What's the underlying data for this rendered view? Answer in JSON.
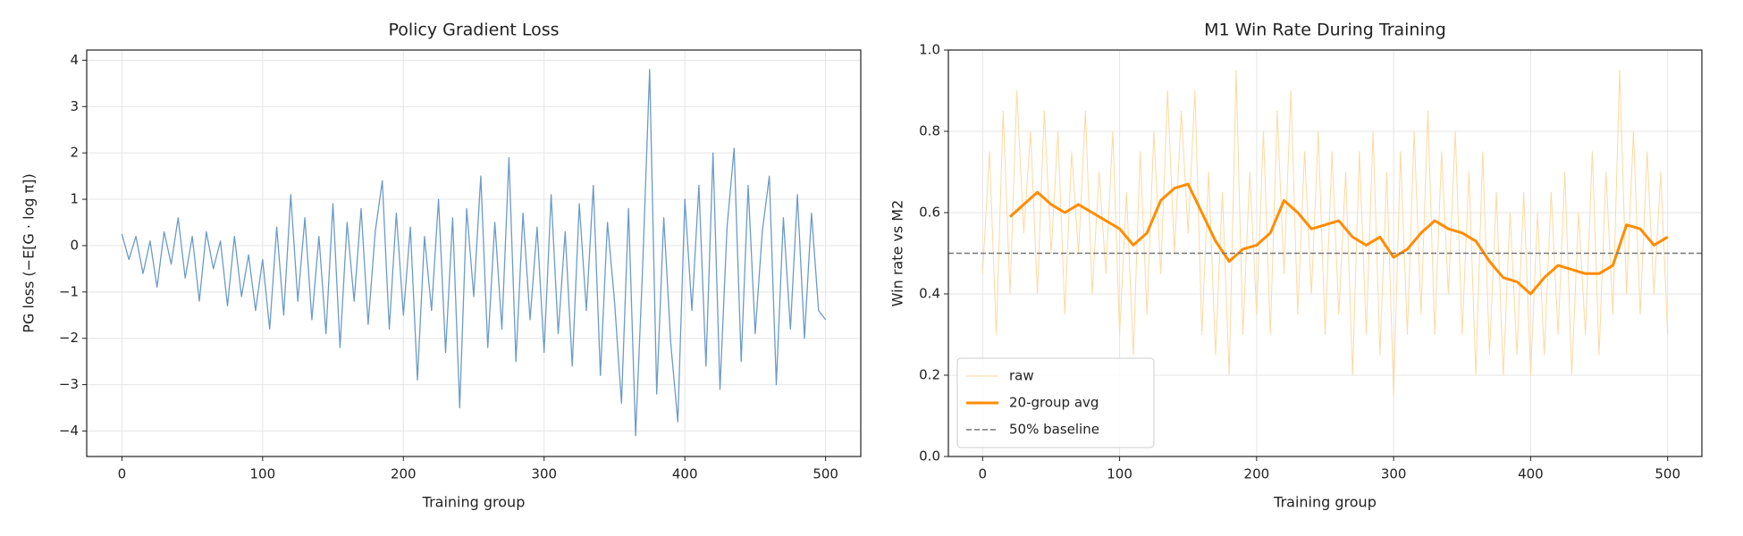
{
  "chart_data": [
    {
      "type": "line",
      "title": "Policy Gradient Loss",
      "xlabel": "Training group",
      "ylabel": "PG loss  (−E[G · log π])",
      "xlim": [
        -25,
        525
      ],
      "ylim": [
        -4.55,
        4.22
      ],
      "xticks": [
        0,
        100,
        200,
        300,
        400,
        500
      ],
      "yticks": [
        {
          "value": -4,
          "label": "−4"
        },
        {
          "value": -3,
          "label": "−3"
        },
        {
          "value": -2,
          "label": "−2"
        },
        {
          "value": -1,
          "label": "−1"
        },
        0,
        1,
        2,
        3,
        4
      ],
      "grid": true,
      "series": [
        {
          "color": "#6b9bc8",
          "width": 1.3,
          "x": [
            0,
            5,
            10,
            15,
            20,
            25,
            30,
            35,
            40,
            45,
            50,
            55,
            60,
            65,
            70,
            75,
            80,
            85,
            90,
            95,
            100,
            105,
            110,
            115,
            120,
            125,
            130,
            135,
            140,
            145,
            150,
            155,
            160,
            165,
            170,
            175,
            180,
            185,
            190,
            195,
            200,
            205,
            210,
            215,
            220,
            225,
            230,
            235,
            240,
            245,
            250,
            255,
            260,
            265,
            270,
            275,
            280,
            285,
            290,
            295,
            300,
            305,
            310,
            315,
            320,
            325,
            330,
            335,
            340,
            345,
            350,
            355,
            360,
            365,
            370,
            375,
            380,
            385,
            390,
            395,
            400,
            405,
            410,
            415,
            420,
            425,
            430,
            435,
            440,
            445,
            450,
            455,
            460,
            465,
            470,
            475,
            480,
            485,
            490,
            495,
            500
          ],
          "values": [
            0.25,
            -0.3,
            0.2,
            -0.6,
            0.1,
            -0.9,
            0.3,
            -0.4,
            0.6,
            -0.7,
            0.2,
            -1.2,
            0.3,
            -0.5,
            0.1,
            -1.3,
            0.2,
            -1.1,
            -0.2,
            -1.4,
            -0.3,
            -1.8,
            0.4,
            -1.5,
            1.1,
            -1.2,
            0.6,
            -1.6,
            0.2,
            -1.9,
            0.9,
            -2.2,
            0.5,
            -1.2,
            0.8,
            -1.7,
            0.3,
            1.4,
            -1.8,
            0.7,
            -1.5,
            0.4,
            -2.9,
            0.2,
            -1.4,
            1.0,
            -2.3,
            0.6,
            -3.5,
            0.8,
            -1.1,
            1.5,
            -2.2,
            0.5,
            -1.8,
            1.9,
            -2.5,
            0.7,
            -1.6,
            0.4,
            -2.3,
            1.1,
            -1.9,
            0.3,
            -2.6,
            0.9,
            -1.4,
            1.3,
            -2.8,
            0.5,
            -1.2,
            -3.4,
            0.8,
            -4.1,
            -0.5,
            3.8,
            -3.2,
            0.6,
            -2.1,
            -3.8,
            1.0,
            -1.4,
            1.3,
            -2.6,
            2.0,
            -3.1,
            0.4,
            2.1,
            -2.5,
            1.3,
            -1.9,
            0.3,
            1.5,
            -3.0,
            0.6,
            -1.8,
            1.1,
            -2.0,
            0.7,
            -1.4,
            -1.6
          ]
        }
      ]
    },
    {
      "type": "line",
      "title": "M1 Win Rate During Training",
      "xlabel": "Training group",
      "ylabel": "Win rate vs M2",
      "xlim": [
        -25,
        525
      ],
      "ylim": [
        0,
        1
      ],
      "xticks": [
        0,
        100,
        200,
        300,
        400,
        500
      ],
      "yticks": [
        {
          "value": 0,
          "label": "0.0"
        },
        0.2,
        0.4,
        0.6,
        0.8,
        {
          "value": 1,
          "label": "1.0"
        }
      ],
      "grid": true,
      "legend": "lower left",
      "series": [
        {
          "name": "raw",
          "color": "#fdd9a0",
          "width": 1,
          "x": [
            0,
            5,
            10,
            15,
            20,
            25,
            30,
            35,
            40,
            45,
            50,
            55,
            60,
            65,
            70,
            75,
            80,
            85,
            90,
            95,
            100,
            105,
            110,
            115,
            120,
            125,
            130,
            135,
            140,
            145,
            150,
            155,
            160,
            165,
            170,
            175,
            180,
            185,
            190,
            195,
            200,
            205,
            210,
            215,
            220,
            225,
            230,
            235,
            240,
            245,
            250,
            255,
            260,
            265,
            270,
            275,
            280,
            285,
            290,
            295,
            300,
            305,
            310,
            315,
            320,
            325,
            330,
            335,
            340,
            345,
            350,
            355,
            360,
            365,
            370,
            375,
            380,
            385,
            390,
            395,
            400,
            405,
            410,
            415,
            420,
            425,
            430,
            435,
            440,
            445,
            450,
            455,
            460,
            465,
            470,
            475,
            480,
            485,
            490,
            495,
            500
          ],
          "values": [
            0.45,
            0.75,
            0.3,
            0.85,
            0.4,
            0.9,
            0.55,
            0.8,
            0.4,
            0.85,
            0.5,
            0.8,
            0.35,
            0.75,
            0.5,
            0.85,
            0.4,
            0.7,
            0.45,
            0.8,
            0.3,
            0.65,
            0.25,
            0.75,
            0.35,
            0.8,
            0.45,
            0.9,
            0.5,
            0.85,
            0.55,
            0.9,
            0.3,
            0.7,
            0.25,
            0.65,
            0.2,
            0.95,
            0.3,
            0.7,
            0.35,
            0.8,
            0.3,
            0.85,
            0.45,
            0.9,
            0.35,
            0.75,
            0.4,
            0.8,
            0.3,
            0.75,
            0.35,
            0.7,
            0.2,
            0.75,
            0.3,
            0.8,
            0.25,
            0.7,
            0.15,
            0.75,
            0.3,
            0.8,
            0.35,
            0.85,
            0.3,
            0.75,
            0.4,
            0.8,
            0.3,
            0.7,
            0.2,
            0.75,
            0.25,
            0.65,
            0.2,
            0.6,
            0.25,
            0.65,
            0.2,
            0.6,
            0.25,
            0.65,
            0.3,
            0.7,
            0.2,
            0.6,
            0.3,
            0.75,
            0.25,
            0.7,
            0.35,
            0.95,
            0.4,
            0.8,
            0.35,
            0.75,
            0.4,
            0.7,
            0.3
          ]
        },
        {
          "name": "20-group avg",
          "color": "#ff8c00",
          "width": 3,
          "x": [
            20,
            30,
            40,
            50,
            60,
            70,
            80,
            90,
            100,
            110,
            120,
            130,
            140,
            150,
            160,
            170,
            180,
            190,
            200,
            210,
            220,
            230,
            240,
            250,
            260,
            270,
            280,
            290,
            300,
            310,
            320,
            330,
            340,
            350,
            360,
            370,
            380,
            390,
            400,
            410,
            420,
            430,
            440,
            450,
            460,
            470,
            480,
            490,
            500
          ],
          "values": [
            0.59,
            0.62,
            0.65,
            0.62,
            0.6,
            0.62,
            0.6,
            0.58,
            0.56,
            0.52,
            0.55,
            0.63,
            0.66,
            0.67,
            0.6,
            0.53,
            0.48,
            0.51,
            0.52,
            0.55,
            0.63,
            0.6,
            0.56,
            0.57,
            0.58,
            0.54,
            0.52,
            0.54,
            0.49,
            0.51,
            0.55,
            0.58,
            0.56,
            0.55,
            0.53,
            0.48,
            0.44,
            0.43,
            0.4,
            0.44,
            0.47,
            0.46,
            0.45,
            0.45,
            0.47,
            0.57,
            0.56,
            0.52,
            0.54
          ]
        },
        {
          "name": "50% baseline",
          "color": "#777777",
          "width": 1.5,
          "style": "dashed",
          "y": 0.5
        }
      ]
    }
  ]
}
